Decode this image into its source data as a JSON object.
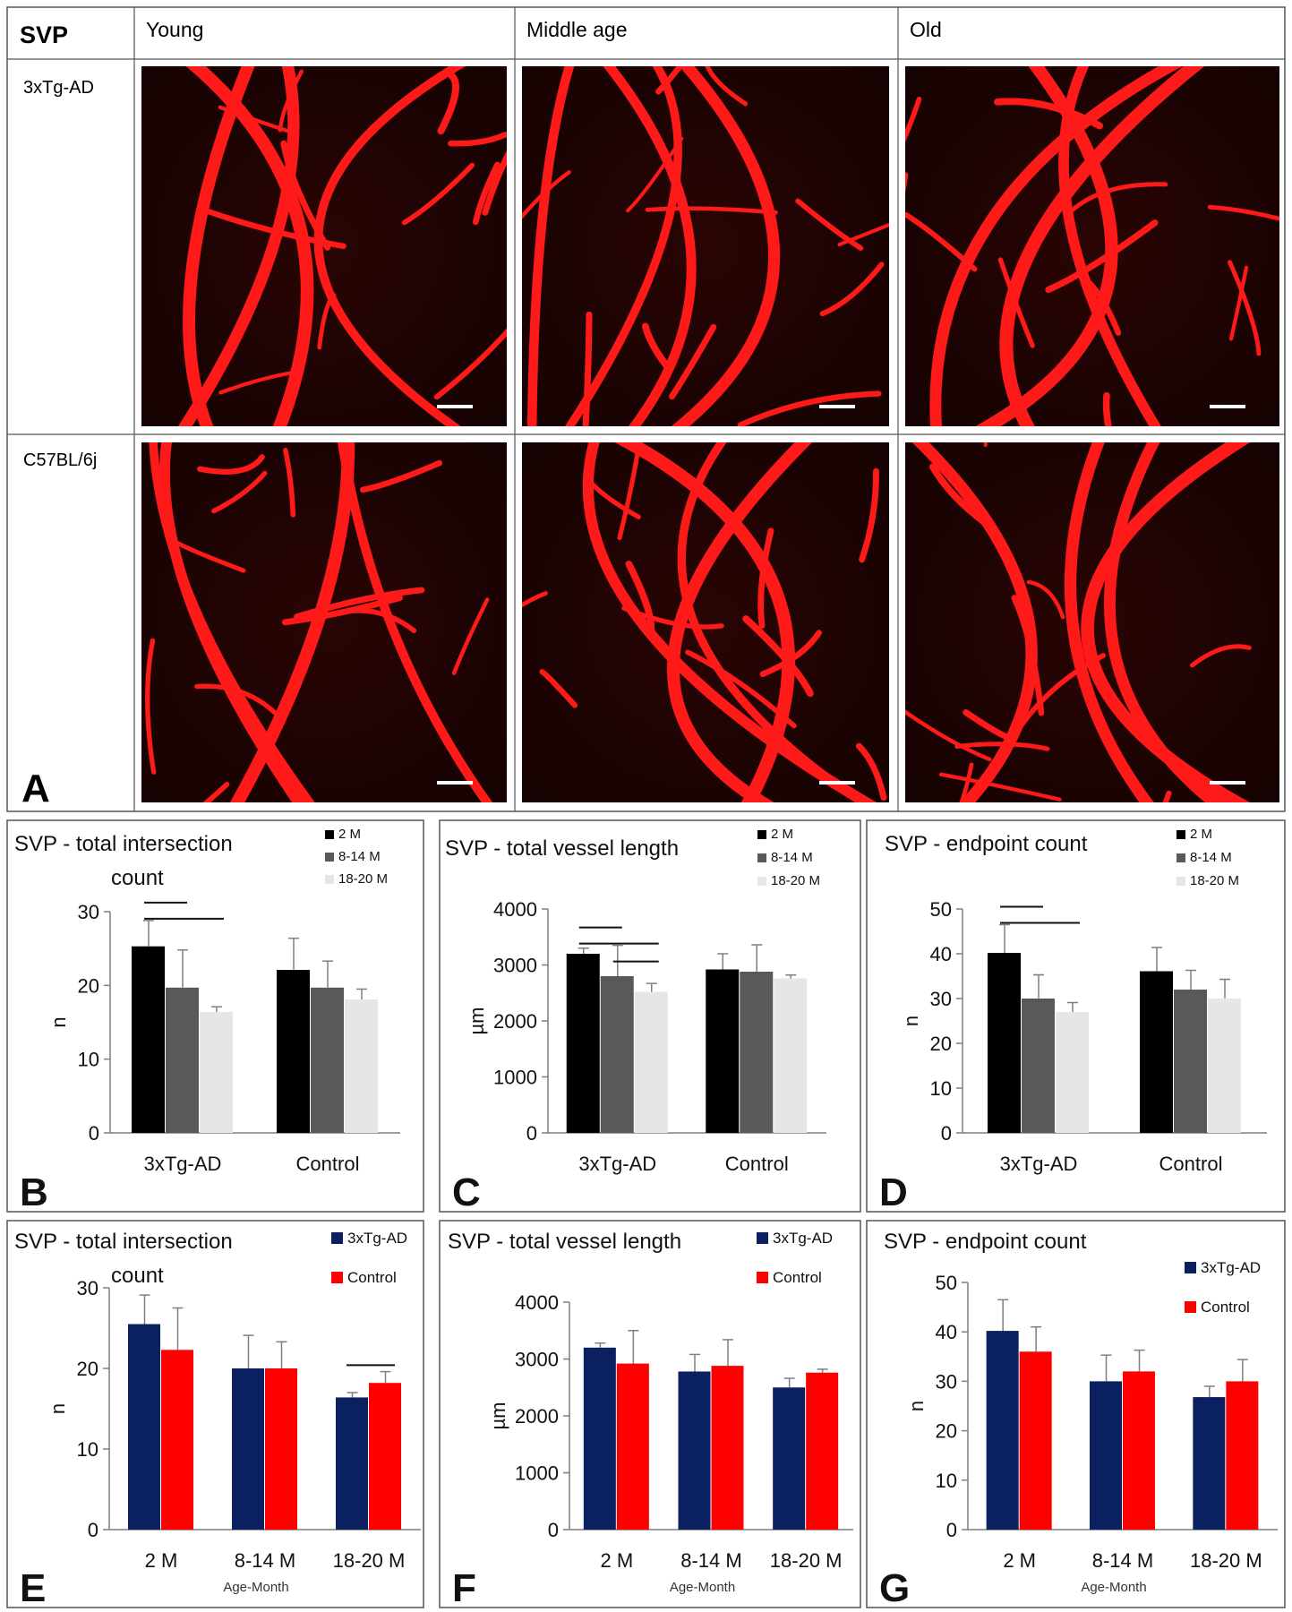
{
  "figure": {
    "grid": {
      "corner_label": "SVP",
      "columns": [
        "Young",
        "Middle age",
        "Old"
      ],
      "rows": [
        "3xTg-AD",
        "C57BL/6j"
      ],
      "panel_letter": "A"
    },
    "colors": {
      "vessel": "#ff1a1a",
      "micrograph_bg": "#1a0303",
      "black": "#000000",
      "gray": "#595959",
      "light_gray": "#e6e6e6",
      "navy": "#0b2060",
      "red": "#ff0000"
    }
  },
  "chart_data": [
    {
      "panel": "B",
      "type": "bar",
      "title_lines": [
        "SVP - total intersection",
        "count"
      ],
      "ylabel": "n",
      "xlabel": "",
      "ylim": [
        0,
        30
      ],
      "yticks": [
        0,
        10,
        20,
        30
      ],
      "categories": [
        "3xTg-AD",
        "Control"
      ],
      "legend": "top-right",
      "series": [
        {
          "name": "2 M",
          "color": "#000000",
          "values": [
            25.3,
            22.1
          ],
          "errors": [
            3.5,
            4.3
          ]
        },
        {
          "name": "8-14 M",
          "color": "#595959",
          "values": [
            19.7,
            19.7
          ],
          "errors": [
            5.1,
            3.6
          ]
        },
        {
          "name": "18-20 M",
          "color": "#e6e6e6",
          "values": [
            16.4,
            18.1
          ],
          "errors": [
            0.7,
            1.4
          ]
        }
      ]
    },
    {
      "panel": "C",
      "type": "bar",
      "title_lines": [
        "SVP - total vessel length"
      ],
      "ylabel": "µm",
      "xlabel": "",
      "ylim": [
        0,
        4000
      ],
      "yticks": [
        0,
        1000,
        2000,
        3000,
        4000
      ],
      "categories": [
        "3xTg-AD",
        "Control"
      ],
      "legend": "top-right",
      "series": [
        {
          "name": "2 M",
          "color": "#000000",
          "values": [
            3200,
            2920
          ],
          "errors": [
            100,
            280
          ]
        },
        {
          "name": "8-14 M",
          "color": "#595959",
          "values": [
            2800,
            2880
          ],
          "errors": [
            550,
            480
          ]
        },
        {
          "name": "18-20 M",
          "color": "#e6e6e6",
          "values": [
            2520,
            2760
          ],
          "errors": [
            150,
            60
          ]
        }
      ]
    },
    {
      "panel": "D",
      "type": "bar",
      "title_lines": [
        "SVP - endpoint count"
      ],
      "ylabel": "n",
      "xlabel": "",
      "ylim": [
        0,
        50
      ],
      "yticks": [
        0,
        10,
        20,
        30,
        40,
        50
      ],
      "categories": [
        "3xTg-AD",
        "Control"
      ],
      "legend": "top-right",
      "series": [
        {
          "name": "2 M",
          "color": "#000000",
          "values": [
            40.2,
            36.1
          ],
          "errors": [
            6.3,
            5.3
          ]
        },
        {
          "name": "8-14 M",
          "color": "#595959",
          "values": [
            30.0,
            32.0
          ],
          "errors": [
            5.3,
            4.3
          ]
        },
        {
          "name": "18-20 M",
          "color": "#e6e6e6",
          "values": [
            27.0,
            30.0
          ],
          "errors": [
            2.1,
            4.3
          ]
        }
      ]
    },
    {
      "panel": "E",
      "type": "bar",
      "title_lines": [
        "SVP - total intersection",
        "count"
      ],
      "ylabel": "n",
      "xlabel": "Age-Month",
      "ylim": [
        0,
        30
      ],
      "yticks": [
        0,
        10,
        20,
        30
      ],
      "categories": [
        "2 M",
        "8-14 M",
        "18-20 M"
      ],
      "legend": "top-right",
      "series": [
        {
          "name": "3xTg-AD",
          "color": "#0b2060",
          "values": [
            25.5,
            20.0,
            16.4
          ],
          "errors": [
            3.6,
            4.1,
            0.6
          ]
        },
        {
          "name": "Control",
          "color": "#ff0000",
          "values": [
            22.3,
            20.0,
            18.2
          ],
          "errors": [
            5.2,
            3.3,
            1.4
          ]
        }
      ]
    },
    {
      "panel": "F",
      "type": "bar",
      "title_lines": [
        "SVP - total vessel length"
      ],
      "ylabel": "µm",
      "xlabel": "Age-Month",
      "ylim": [
        0,
        4000
      ],
      "yticks": [
        0,
        1000,
        2000,
        3000,
        4000
      ],
      "categories": [
        "2 M",
        "8-14 M",
        "18-20 M"
      ],
      "legend": "top-right",
      "series": [
        {
          "name": "3xTg-AD",
          "color": "#0b2060",
          "values": [
            3200,
            2780,
            2500
          ],
          "errors": [
            80,
            300,
            160
          ]
        },
        {
          "name": "Control",
          "color": "#ff0000",
          "values": [
            2920,
            2880,
            2760
          ],
          "errors": [
            580,
            460,
            60
          ]
        }
      ]
    },
    {
      "panel": "G",
      "type": "bar",
      "title_lines": [
        "SVP - endpoint count"
      ],
      "ylabel": "n",
      "xlabel": "Age-Month",
      "ylim": [
        0,
        50
      ],
      "yticks": [
        0,
        10,
        20,
        30,
        40,
        50
      ],
      "categories": [
        "2 M",
        "8-14 M",
        "18-20 M"
      ],
      "legend": "top-right",
      "series": [
        {
          "name": "3xTg-AD",
          "color": "#0b2060",
          "values": [
            40.2,
            30.0,
            26.8
          ],
          "errors": [
            6.3,
            5.3,
            2.2
          ]
        },
        {
          "name": "Control",
          "color": "#ff0000",
          "values": [
            36.0,
            32.0,
            30.0
          ],
          "errors": [
            5.0,
            4.3,
            4.4
          ]
        }
      ]
    }
  ]
}
